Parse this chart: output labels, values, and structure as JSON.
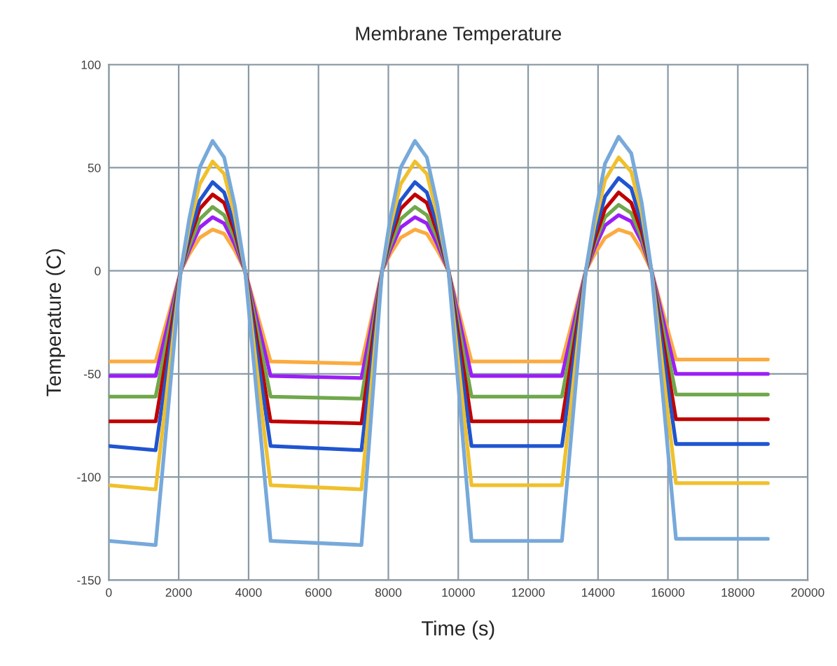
{
  "chart_data": {
    "type": "line",
    "title": "Membrane Temperature",
    "xlabel": "Time (s)",
    "ylabel": "Temperature (C)",
    "x": [
      0,
      1340,
      2060,
      2300,
      2600,
      2970,
      3300,
      3600,
      3900,
      4630,
      7230,
      7820,
      8050,
      8350,
      8760,
      9100,
      9400,
      9720,
      10380,
      12966,
      13650,
      13900,
      14200,
      14590,
      14950,
      15250,
      15530,
      16230,
      18860
    ],
    "series": [
      {
        "color": "#fbab40",
        "values": [
          -44,
          -44,
          0,
          8,
          16,
          20,
          18,
          10,
          0,
          -44,
          -45,
          0,
          8,
          16,
          20,
          18,
          10,
          0,
          -44,
          -44,
          0,
          8,
          16,
          20,
          18,
          10,
          0,
          -43,
          -43
        ]
      },
      {
        "color": "#9b1ff5",
        "values": [
          -51,
          -51,
          0,
          10,
          21,
          26,
          23,
          13,
          0,
          -51,
          -52,
          0,
          10,
          21,
          26,
          23,
          13,
          0,
          -51,
          -51,
          0,
          11,
          22,
          27,
          24,
          14,
          0,
          -50,
          -50
        ]
      },
      {
        "color": "#70a84c",
        "values": [
          -61,
          -61,
          0,
          12,
          25,
          31,
          27,
          16,
          0,
          -61,
          -62,
          0,
          12,
          25,
          31,
          27,
          16,
          0,
          -61,
          -61,
          0,
          13,
          26,
          32,
          28,
          16,
          0,
          -60,
          -60
        ]
      },
      {
        "color": "#c00000",
        "values": [
          -73,
          -73,
          0,
          15,
          30,
          37,
          33,
          19,
          0,
          -73,
          -74,
          0,
          15,
          30,
          37,
          33,
          19,
          0,
          -73,
          -73,
          0,
          15,
          30,
          38,
          33,
          19,
          0,
          -72,
          -72
        ]
      },
      {
        "color": "#2055d0",
        "values": [
          -85,
          -87,
          0,
          17,
          34,
          43,
          38,
          22,
          0,
          -85,
          -87,
          0,
          17,
          34,
          43,
          38,
          22,
          0,
          -85,
          -85,
          0,
          18,
          36,
          45,
          40,
          23,
          0,
          -84,
          -84
        ]
      },
      {
        "color": "#f0c02c",
        "values": [
          -104,
          -106,
          0,
          21,
          42,
          53,
          47,
          27,
          0,
          -104,
          -106,
          0,
          21,
          42,
          53,
          47,
          27,
          0,
          -104,
          -104,
          0,
          22,
          44,
          55,
          48,
          28,
          0,
          -103,
          -103
        ]
      },
      {
        "color": "#77a9da",
        "values": [
          -131,
          -133,
          0,
          25,
          50,
          63,
          55,
          32,
          0,
          -131,
          -133,
          0,
          25,
          50,
          63,
          55,
          32,
          0,
          -131,
          -131,
          0,
          26,
          52,
          65,
          57,
          33,
          0,
          -130,
          -130
        ]
      }
    ],
    "xlim": [
      0,
      20000
    ],
    "xticks": [
      0,
      2000,
      4000,
      6000,
      8000,
      10000,
      12000,
      14000,
      16000,
      18000,
      20000
    ],
    "ylim": [
      -150,
      100
    ],
    "yticks": [
      -150,
      -100,
      -50,
      0,
      50,
      100
    ],
    "grid": true,
    "legend": false,
    "marker": "none",
    "line_style": "solid"
  }
}
